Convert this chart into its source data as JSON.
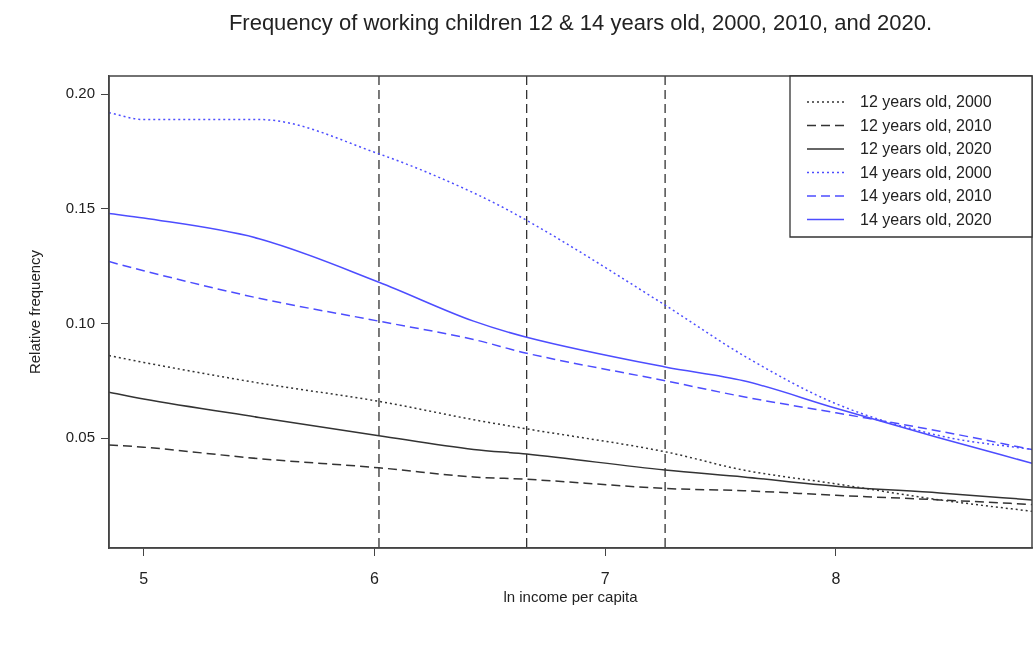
{
  "chart_data": {
    "type": "line",
    "title": "Frequency of working children 12 & 14 years old, 2000, 2010, and 2020.",
    "xlabel": "ln income per capita",
    "ylabel": "Relative frequency",
    "x": [
      4.85,
      5.0,
      5.5,
      6.02,
      6.43,
      6.66,
      7.26,
      7.6,
      8.0,
      8.45,
      8.85
    ],
    "series": [
      {
        "name": "12 years old, 2000",
        "color": "#333333",
        "line_style": "dotted",
        "values": [
          0.086,
          0.083,
          0.074,
          0.066,
          0.058,
          0.054,
          0.044,
          0.036,
          0.03,
          0.023,
          0.018
        ]
      },
      {
        "name": "12 years old, 2010",
        "color": "#333333",
        "line_style": "dashed",
        "values": [
          0.047,
          0.046,
          0.041,
          0.037,
          0.033,
          0.032,
          0.028,
          0.027,
          0.025,
          0.023,
          0.021
        ]
      },
      {
        "name": "12 years old, 2020",
        "color": "#333333",
        "line_style": "solid",
        "values": [
          0.07,
          0.067,
          0.059,
          0.051,
          0.045,
          0.043,
          0.036,
          0.033,
          0.029,
          0.026,
          0.023
        ]
      },
      {
        "name": "14 years old, 2000",
        "color": "#4d4dff",
        "line_style": "dotted",
        "values": [
          0.192,
          0.189,
          0.189,
          0.174,
          0.157,
          0.145,
          0.108,
          0.086,
          0.065,
          0.051,
          0.045
        ]
      },
      {
        "name": "14 years old, 2010",
        "color": "#4d4dff",
        "line_style": "dashed",
        "values": [
          0.127,
          0.123,
          0.111,
          0.101,
          0.093,
          0.087,
          0.075,
          0.068,
          0.061,
          0.053,
          0.045
        ]
      },
      {
        "name": "14 years old, 2020",
        "color": "#4d4dff",
        "line_style": "solid",
        "values": [
          0.148,
          0.146,
          0.137,
          0.118,
          0.101,
          0.094,
          0.081,
          0.075,
          0.063,
          0.05,
          0.039
        ]
      }
    ],
    "xlim": [
      4.85,
      8.85
    ],
    "xticks": [
      5,
      6,
      7,
      8
    ],
    "ylim": [
      0.002,
      0.208
    ],
    "yticks": [
      {
        "value": 0.05,
        "label": "0.05"
      },
      {
        "value": 0.1,
        "label": "0.10"
      },
      {
        "value": 0.15,
        "label": "0.15"
      },
      {
        "value": 0.2,
        "label": "0.20"
      }
    ],
    "ref_lines": [
      {
        "axis": "x",
        "value": 6.02,
        "color": "#333333",
        "line_style": "dashed"
      },
      {
        "axis": "x",
        "value": 6.66,
        "color": "#333333",
        "line_style": "dashed"
      },
      {
        "axis": "x",
        "value": 7.26,
        "color": "#333333",
        "line_style": "dashed"
      }
    ],
    "grid": false,
    "legend": "top right",
    "marker": "none"
  }
}
